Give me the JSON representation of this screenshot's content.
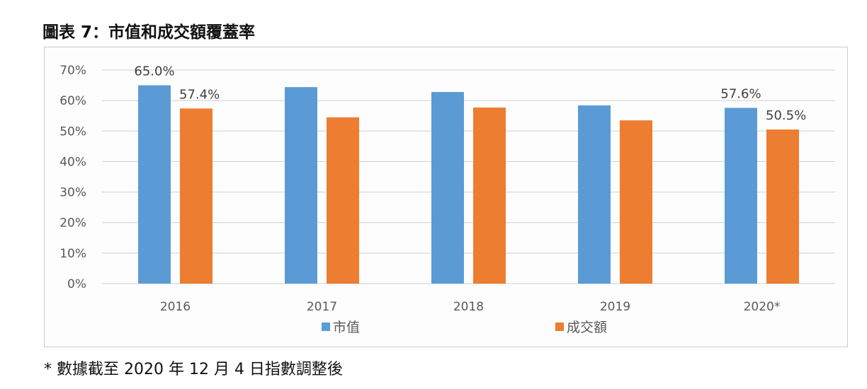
{
  "title": "圖表 7：市值和成交額覆蓋率",
  "footnote": "* 數據截至 2020 年 12 月 4 日指數調整後",
  "chart_data": {
    "type": "bar",
    "categories": [
      "2016",
      "2017",
      "2018",
      "2019",
      "2020*"
    ],
    "series": [
      {
        "name": "市值",
        "color": "#5b9bd5",
        "values": [
          65.0,
          64.4,
          62.8,
          58.4,
          57.6
        ]
      },
      {
        "name": "成交額",
        "color": "#ed7d31",
        "values": [
          57.4,
          54.5,
          57.7,
          53.5,
          50.5
        ]
      }
    ],
    "data_labels": [
      {
        "series": 0,
        "index": 0,
        "text": "65.0%"
      },
      {
        "series": 1,
        "index": 0,
        "text": "57.4%"
      },
      {
        "series": 0,
        "index": 4,
        "text": "57.6%"
      },
      {
        "series": 1,
        "index": 4,
        "text": "50.5%"
      }
    ],
    "yticks": [
      "0%",
      "10%",
      "20%",
      "30%",
      "40%",
      "50%",
      "60%",
      "70%"
    ],
    "ylim": [
      0,
      70
    ],
    "grid": true,
    "legend": "bottom"
  }
}
